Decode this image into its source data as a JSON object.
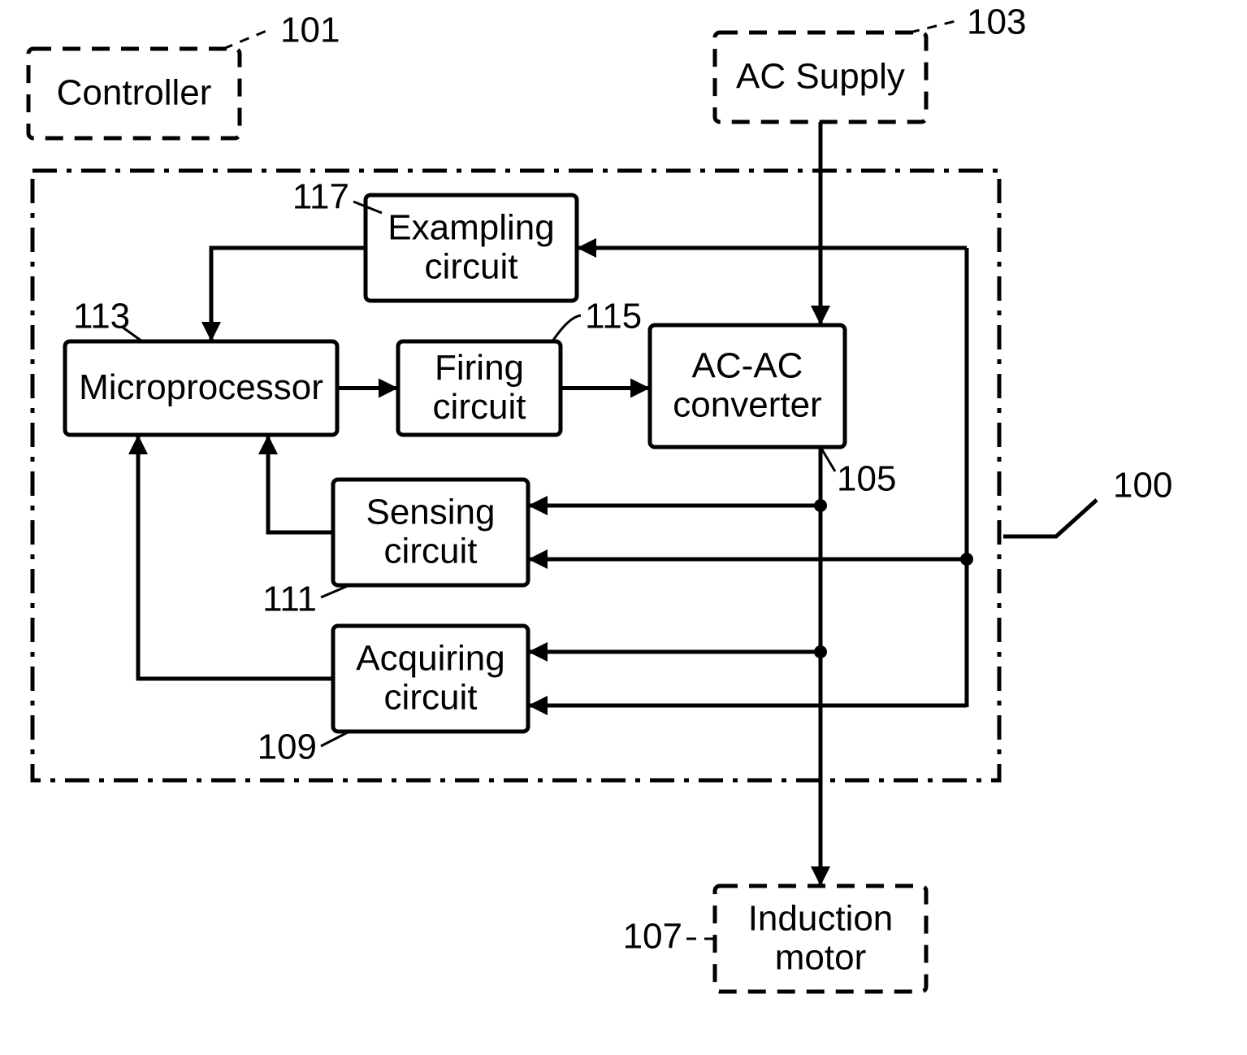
{
  "style": {
    "background_color": "#ffffff",
    "stroke_color": "#000000",
    "box_stroke_width": 5,
    "box_corner_radius": 6,
    "wire_stroke_width": 5,
    "arrowhead_len": 24,
    "arrowhead_half_w": 12,
    "node_radius": 8,
    "dash_pattern": "22 14",
    "dashdot_pattern": "30 12 6 12",
    "leader_stroke_width": 3,
    "leader_dash": "12 10",
    "font_family": "Arial, Helvetica, sans-serif",
    "box_font_size": 44,
    "ref_font_size": 44
  },
  "blocks": {
    "controller": {
      "ref": "101",
      "label_top": "Controller",
      "label_bot": ""
    },
    "ac_supply": {
      "ref": "103",
      "label_top": "AC Supply",
      "label_bot": ""
    },
    "system": {
      "ref": "100"
    },
    "exampling": {
      "ref": "117",
      "label_top": "Exampling",
      "label_bot": "circuit"
    },
    "microproc": {
      "ref": "113",
      "label_top": "Microprocessor",
      "label_bot": ""
    },
    "firing": {
      "ref": "115",
      "label_top": "Firing",
      "label_bot": "circuit"
    },
    "acac": {
      "ref": "105",
      "label_top": "AC-AC",
      "label_bot": "converter"
    },
    "sensing": {
      "ref": "111",
      "label_top": "Sensing",
      "label_bot": "circuit"
    },
    "acquiring": {
      "ref": "109",
      "label_top": "Acquiring",
      "label_bot": "circuit"
    },
    "induction": {
      "ref": "107",
      "label_top": "Induction",
      "label_bot": "motor"
    }
  }
}
